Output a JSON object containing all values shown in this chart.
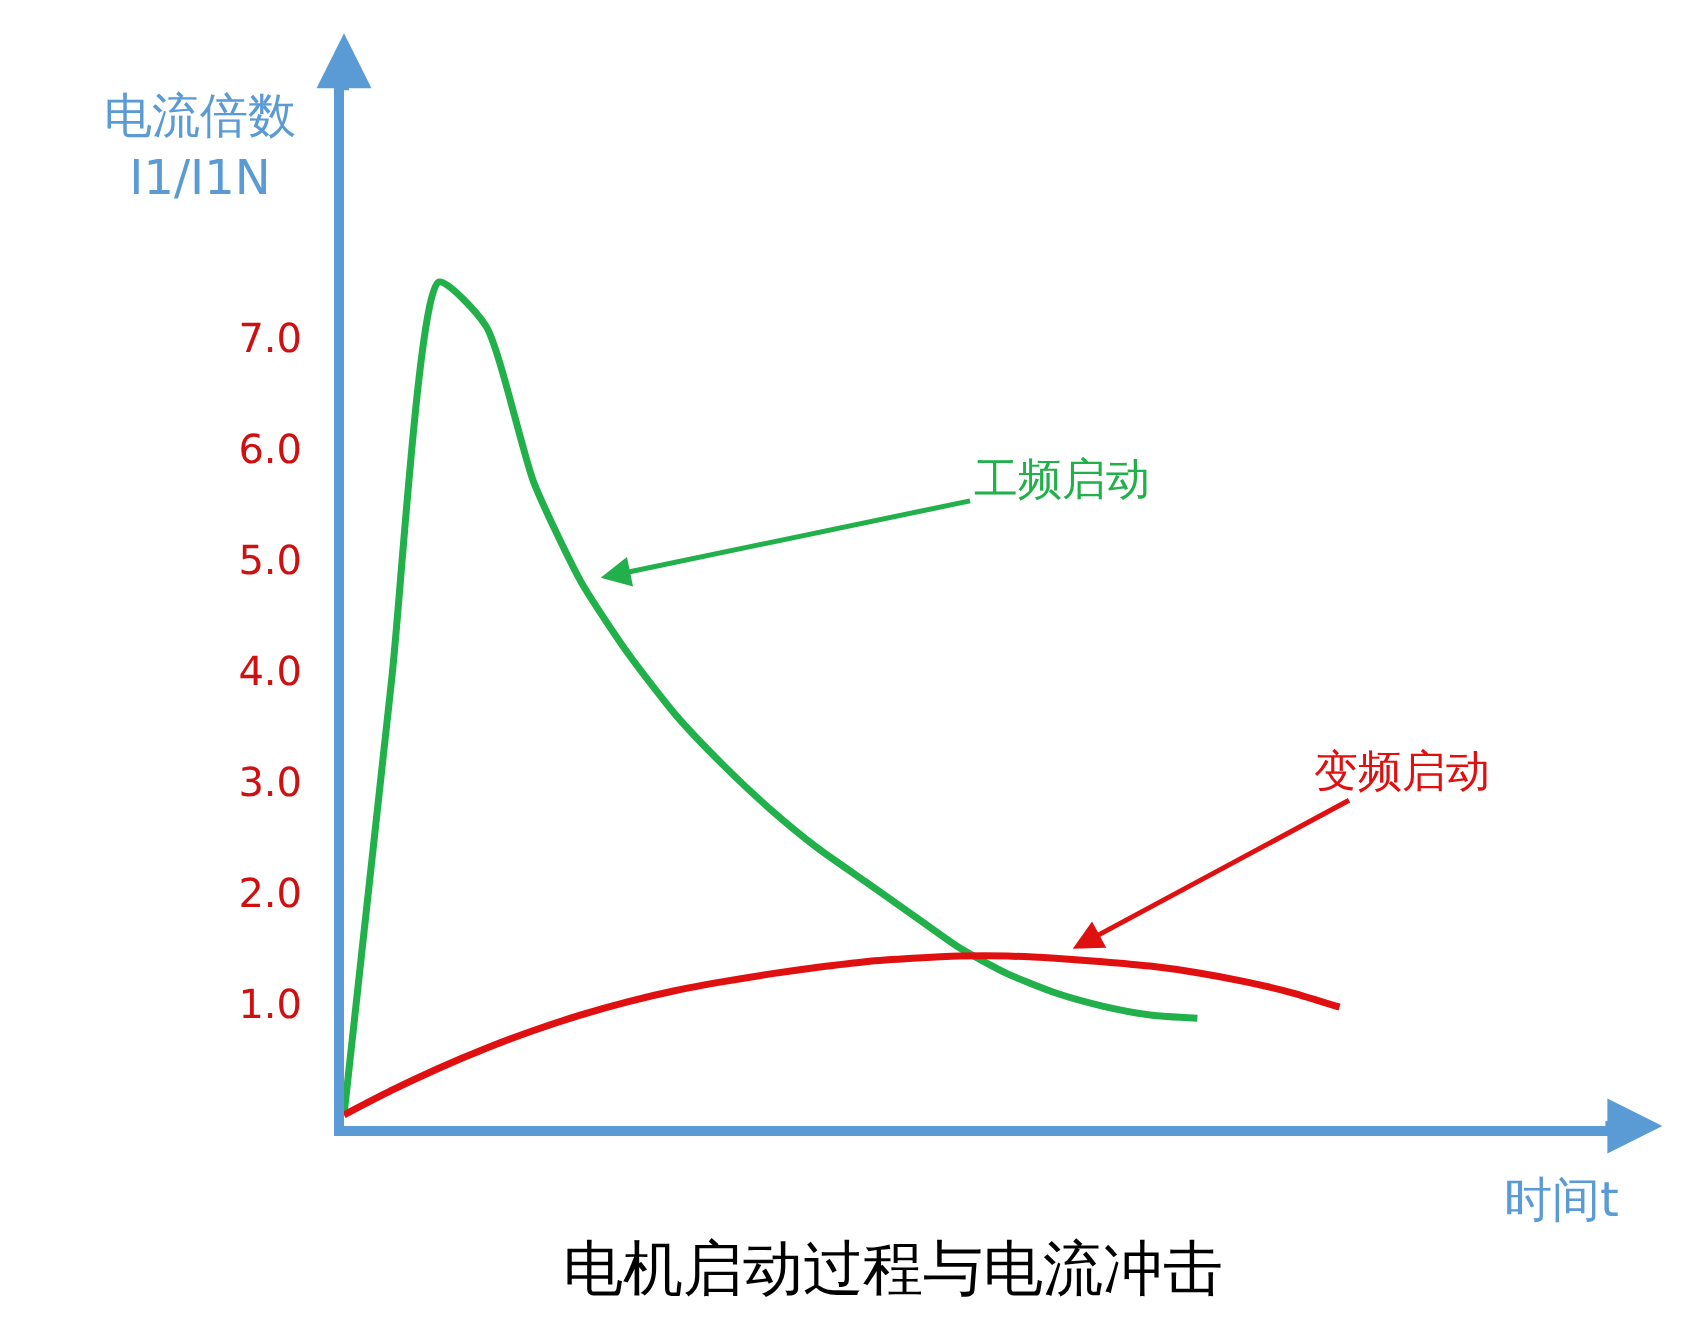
{
  "chart_data": {
    "type": "line",
    "title": "电机启动过程与电流冲击",
    "xlabel": "时间t",
    "ylabel": "电流倍数\nI1/I1N",
    "categories": [
      null,
      null,
      null,
      null,
      null,
      null,
      null,
      null,
      null,
      null,
      null,
      null,
      null,
      null,
      null,
      null,
      null,
      null,
      null,
      null,
      null,
      null,
      null,
      null,
      null,
      null,
      null,
      null
    ],
    "series": [
      {
        "name": "工频启动",
        "color": "#22b04a",
        "values": [
          0,
          3.9,
          7.5,
          7.1,
          5.7,
          4.8,
          4.15,
          3.6,
          3.15,
          2.75,
          2.4,
          2.1,
          1.8,
          1.5,
          1.27,
          1.1,
          0.98,
          0.9,
          0.87,
          null,
          null,
          null,
          null,
          null,
          null,
          null,
          null,
          null
        ]
      },
      {
        "name": "变频启动",
        "color": "#e01010",
        "values": [
          0,
          0.22,
          0.42,
          0.6,
          0.76,
          0.9,
          1.02,
          1.12,
          1.2,
          1.27,
          1.33,
          1.38,
          1.41,
          1.43,
          1.43,
          1.41,
          1.38,
          1.34,
          1.28,
          1.2,
          1.1,
          0.97,
          null,
          null,
          null,
          null,
          null,
          null
        ]
      }
    ],
    "ylim": [
      -0.1,
      9.5
    ],
    "yticks": [
      {
        "value": 1,
        "label": "1.0"
      },
      {
        "value": 2,
        "label": "2.0"
      },
      {
        "value": 3,
        "label": "3.0"
      },
      {
        "value": 4,
        "label": "4.0"
      },
      {
        "value": 5,
        "label": "5.0"
      },
      {
        "value": 6,
        "label": "6.0"
      },
      {
        "value": 7,
        "label": "7.0"
      }
    ],
    "tick_labels": "y",
    "legend": false,
    "marker": "none",
    "line_style": "solid"
  }
}
